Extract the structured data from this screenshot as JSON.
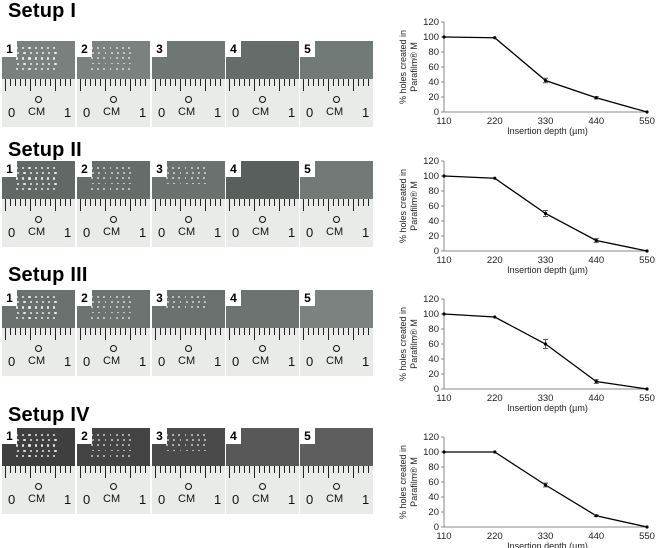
{
  "setups": [
    {
      "title": "Setup I",
      "panel_numbers": [
        "1",
        "2",
        "3",
        "4",
        "5"
      ],
      "ruler_text": {
        "cm": "CM",
        "zero": "0",
        "one": "1"
      },
      "film_colors": [
        "#79807d",
        "#7a817e",
        "#6f7674",
        "#656c6a",
        "#727a77"
      ],
      "visible_hole_rows": [
        5,
        5,
        0,
        0,
        0
      ]
    },
    {
      "title": "Setup II",
      "panel_numbers": [
        "1",
        "2",
        "3",
        "4",
        "5"
      ],
      "ruler_text": {
        "cm": "CM",
        "zero": "0",
        "one": "1"
      },
      "film_colors": [
        "#626866",
        "#666c6a",
        "#6b716f",
        "#595f5d",
        "#727977"
      ],
      "visible_hole_rows": [
        5,
        5,
        4,
        0,
        0
      ]
    },
    {
      "title": "Setup III",
      "panel_numbers": [
        "1",
        "2",
        "3",
        "4",
        "5"
      ],
      "ruler_text": {
        "cm": "CM",
        "zero": "0",
        "one": "1"
      },
      "film_colors": [
        "#6a706e",
        "#6d7371",
        "#6a706e",
        "#6d7371",
        "#7b8280"
      ],
      "visible_hole_rows": [
        5,
        5,
        3,
        0,
        0
      ]
    },
    {
      "title": "Setup IV",
      "panel_numbers": [
        "1",
        "2",
        "3",
        "4",
        "5"
      ],
      "ruler_text": {
        "cm": "CM",
        "zero": "0",
        "one": "1"
      },
      "film_colors": [
        "#3f3f3f",
        "#444444",
        "#4a4a4a",
        "#585858",
        "#5e5e5e"
      ],
      "visible_hole_rows": [
        5,
        5,
        4,
        0,
        0
      ]
    }
  ],
  "chart_data": [
    {
      "type": "line",
      "x": [
        110,
        220,
        330,
        440,
        550
      ],
      "y": [
        100,
        99,
        42,
        19,
        0
      ],
      "error": [
        0,
        0,
        3,
        1.5,
        0
      ],
      "xlabel": "Insertion depth (µm)",
      "ylabel_line1": "% holes created in",
      "ylabel_line2": "Parafilm® M",
      "ylim": [
        0,
        120
      ],
      "yticks": [
        0,
        20,
        40,
        60,
        80,
        100,
        120
      ],
      "xtick_labels": [
        "110",
        "220",
        "330",
        "440",
        "550"
      ],
      "line_color": "#000000"
    },
    {
      "type": "line",
      "x": [
        110,
        220,
        330,
        440,
        550
      ],
      "y": [
        100,
        97,
        50,
        14,
        0
      ],
      "error": [
        0,
        0,
        4,
        2.5,
        0
      ],
      "xlabel": "Insertion depth (µm)",
      "ylabel_line1": "% holes created in",
      "ylabel_line2": "Parafilm® M",
      "ylim": [
        0,
        120
      ],
      "yticks": [
        0,
        20,
        40,
        60,
        80,
        100,
        120
      ],
      "xtick_labels": [
        "110",
        "220",
        "330",
        "440",
        "550"
      ],
      "line_color": "#000000"
    },
    {
      "type": "line",
      "x": [
        110,
        220,
        330,
        440,
        550
      ],
      "y": [
        100,
        96,
        60,
        10,
        0
      ],
      "error": [
        0,
        0,
        6,
        2.5,
        0
      ],
      "xlabel": "Insertion depth (µm)",
      "ylabel_line1": "% holes created in",
      "ylabel_line2": "Parafilm® M",
      "ylim": [
        0,
        120
      ],
      "yticks": [
        0,
        20,
        40,
        60,
        80,
        100,
        120
      ],
      "xtick_labels": [
        "110",
        "220",
        "330",
        "440",
        "550"
      ],
      "line_color": "#000000"
    },
    {
      "type": "line",
      "x": [
        110,
        220,
        330,
        440,
        550
      ],
      "y": [
        100,
        100,
        56,
        15,
        0
      ],
      "error": [
        0,
        0,
        2.5,
        1,
        0
      ],
      "xlabel": "Insertion depth (µm)",
      "ylabel_line1": "% holes created in",
      "ylabel_line2": "Parafilm® M",
      "ylim": [
        0,
        120
      ],
      "yticks": [
        0,
        20,
        40,
        60,
        80,
        100,
        120
      ],
      "xtick_labels": [
        "110",
        "220",
        "330",
        "440",
        "550"
      ],
      "line_color": "#000000"
    }
  ]
}
